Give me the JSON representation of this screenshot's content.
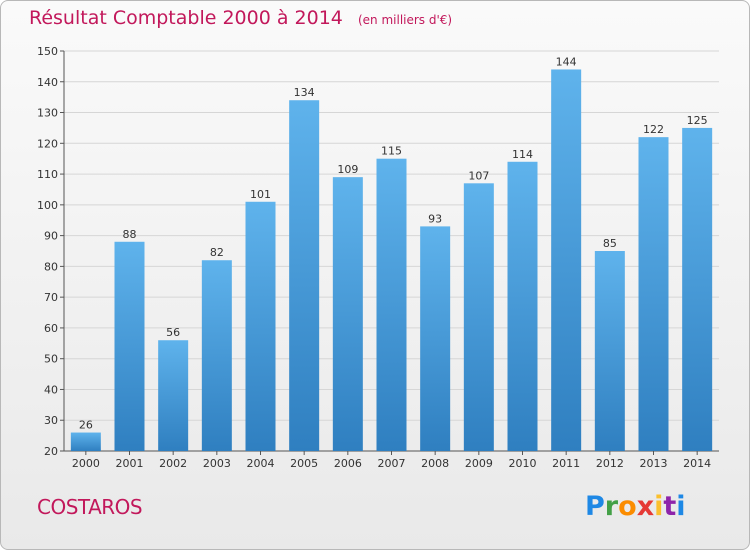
{
  "header": {
    "title": "Résultat Comptable 2000 à 2014",
    "subtitle": "(en milliers d'€)"
  },
  "commune": "COSTAROS",
  "logo": {
    "text": "Proxiti",
    "letter_colors": [
      "#1e88e5",
      "#43a047",
      "#fb8c00",
      "#e53935",
      "#fbc02d",
      "#8e24aa",
      "#1e88e5"
    ]
  },
  "colors": {
    "bar_top": "#5fb3ec",
    "bar_bottom": "#2f7fc0",
    "grid": "#d6d6d6",
    "accent": "#c2185b"
  },
  "chart_data": {
    "type": "bar",
    "categories": [
      "2000",
      "2001",
      "2002",
      "2003",
      "2004",
      "2005",
      "2006",
      "2007",
      "2008",
      "2009",
      "2010",
      "2011",
      "2012",
      "2013",
      "2014"
    ],
    "values": [
      26,
      88,
      56,
      82,
      101,
      134,
      109,
      115,
      93,
      107,
      114,
      144,
      85,
      122,
      125
    ],
    "ylim": [
      20,
      150
    ],
    "yticks": [
      20,
      30,
      40,
      50,
      60,
      70,
      80,
      90,
      100,
      110,
      120,
      130,
      140,
      150
    ],
    "grid": true,
    "legend": "none"
  }
}
